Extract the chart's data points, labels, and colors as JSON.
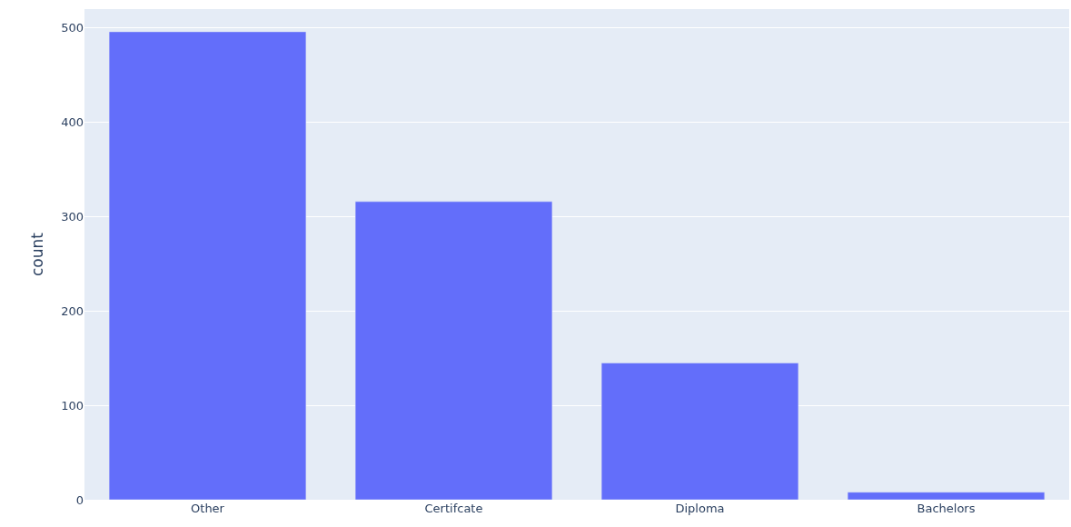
{
  "chart_data": {
    "type": "bar",
    "ylabel": "count",
    "categories": [
      "Other",
      "Certifcate",
      "Diploma",
      "Bachelors"
    ],
    "values": [
      496,
      316,
      145,
      8
    ],
    "color": "#636efa",
    "ylim": [
      0,
      520
    ],
    "yticks": [
      0,
      100,
      200,
      300,
      400,
      500
    ],
    "grid": "y",
    "legend": false
  }
}
